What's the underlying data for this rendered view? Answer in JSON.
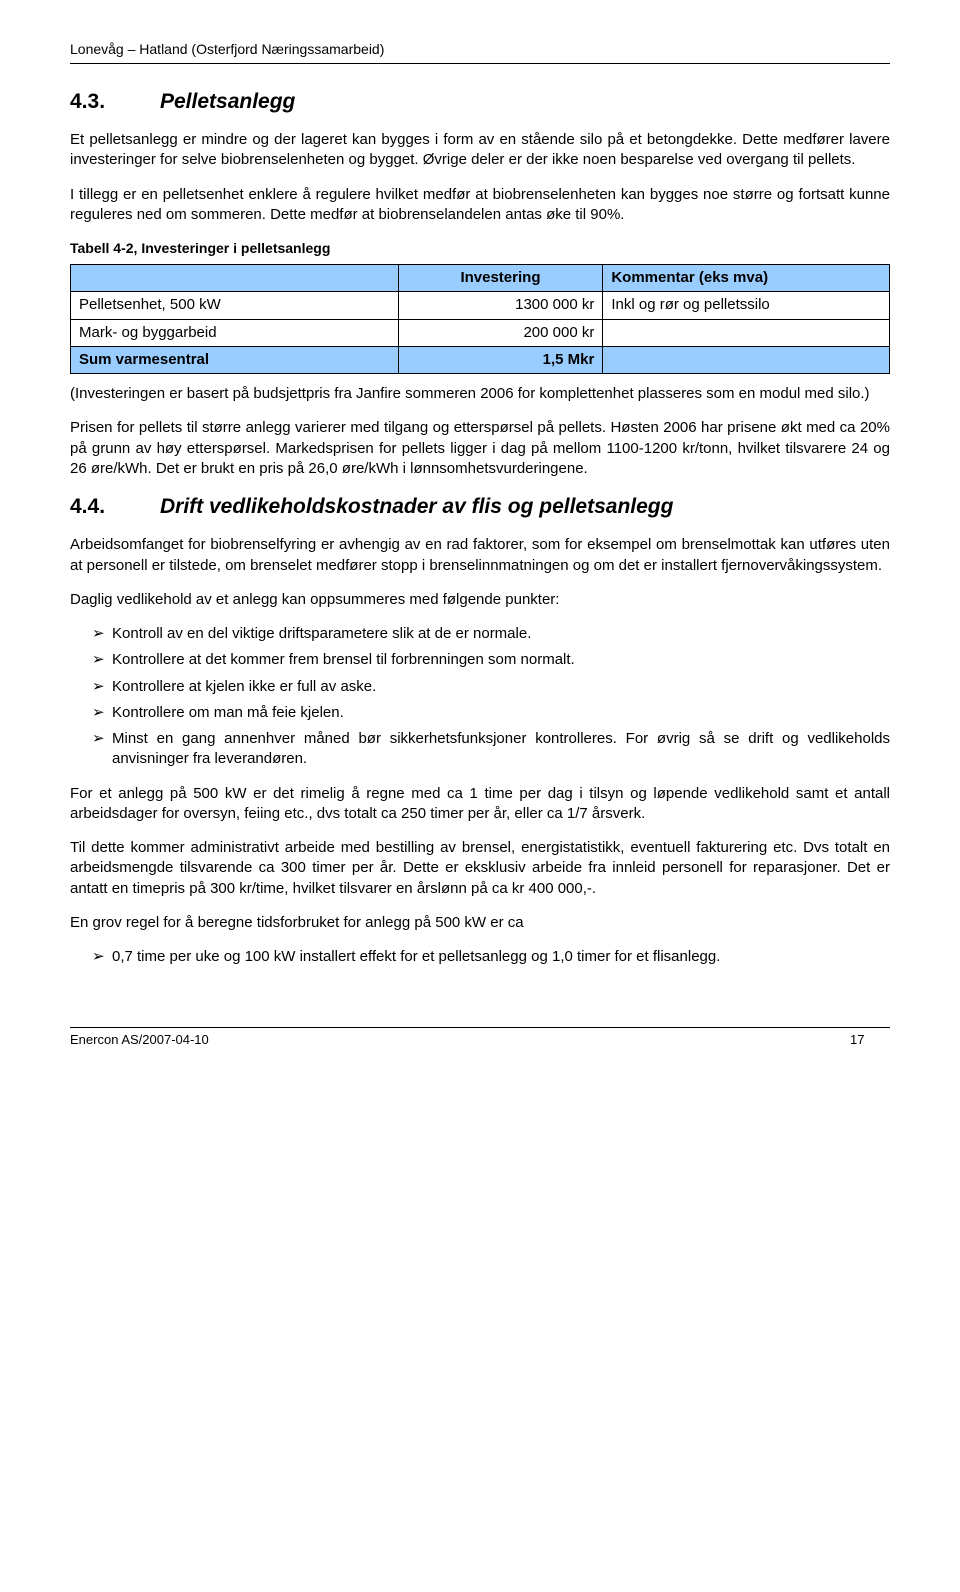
{
  "header": {
    "title": "Lonevåg – Hatland (Osterfjord Næringssamarbeid)"
  },
  "section43": {
    "number": "4.3.",
    "title": "Pelletsanlegg",
    "p1": "Et pelletsanlegg er mindre og der lageret kan bygges i form av en stående silo på et betongdekke. Dette medfører lavere investeringer for selve biobrenselenheten og bygget. Øvrige deler er der ikke noen besparelse ved overgang til pellets.",
    "p2": "I tillegg er en pelletsenhet enklere å regulere hvilket medfør at biobrenselenheten kan bygges noe større og fortsatt kunne reguleres ned om sommeren. Dette medfør at biobrenselandelen antas øke til 90%."
  },
  "table42": {
    "caption": "Tabell 4-2, Investeringer i pelletsanlegg",
    "header": {
      "c1": "",
      "c2": "Investering",
      "c3": "Kommentar (eks mva)"
    },
    "rows": [
      {
        "c1": "Pelletsenhet, 500 kW",
        "c2": "1300 000 kr",
        "c3": "Inkl og rør og pelletssilo"
      },
      {
        "c1": "Mark- og byggarbeid",
        "c2": "200 000 kr",
        "c3": ""
      }
    ],
    "sum": {
      "c1": "Sum varmesentral",
      "c2": "1,5 Mkr",
      "c3": ""
    },
    "colors": {
      "highlight": "#99ccff",
      "border": "#000000"
    }
  },
  "post_table": {
    "p1": "(Investeringen er basert på budsjettpris fra Janfire sommeren 2006 for komplettenhet plasseres som en modul med silo.)",
    "p2": "Prisen for pellets til større anlegg varierer med tilgang og etterspørsel på pellets. Høsten 2006 har prisene økt med ca 20% på grunn av høy etterspørsel. Markedsprisen for pellets ligger i dag på mellom 1100-1200 kr/tonn, hvilket tilsvarere 24 og 26 øre/kWh. Det er brukt en pris på 26,0 øre/kWh i lønnsomhetsvurderingene."
  },
  "section44": {
    "number": "4.4.",
    "title": "Drift vedlikeholdskostnader av flis og pelletsanlegg",
    "p1": "Arbeidsomfanget for biobrenselfyring er avhengig av en rad faktorer, som for eksempel om brenselmottak kan utføres uten at personell er tilstede, om brenselet medfører stopp i brenselinnmatningen og om det er installert fjernovervåkingssystem.",
    "p2": "Daglig vedlikehold av et anlegg kan oppsummeres med følgende punkter:",
    "bullets1": [
      "Kontroll av en del viktige driftsparametere slik at de er normale.",
      "Kontrollere at det kommer frem brensel til forbrenningen som normalt.",
      "Kontrollere at kjelen ikke er full av aske.",
      "Kontrollere om man må feie kjelen.",
      "Minst en gang annenhver måned bør sikkerhetsfunksjoner kontrolleres. For øvrig så se drift og vedlikeholds anvisninger fra leverandøren."
    ],
    "p3": "For et anlegg på 500 kW er det rimelig å regne med ca 1 time per dag i tilsyn og løpende vedlikehold samt et antall arbeidsdager for oversyn, feiing etc., dvs totalt ca 250 timer per år, eller ca 1/7 årsverk.",
    "p4": "Til dette kommer administrativt arbeide med bestilling av brensel, energistatistikk, eventuell fakturering etc. Dvs totalt en arbeidsmengde tilsvarende ca 300 timer per år. Dette er eksklusiv arbeide fra innleid personell for reparasjoner. Det er antatt en timepris på 300 kr/time, hvilket tilsvarer en årslønn på ca kr 400 000,-.",
    "p5": "En grov regel for å beregne tidsforbruket for anlegg på 500 kW er ca",
    "bullets2": [
      "0,7 time per uke og 100 kW installert effekt for et pelletsanlegg og 1,0 timer for et flisanlegg."
    ]
  },
  "footer": {
    "left": "Enercon AS/2007-04-10",
    "page": "17"
  }
}
